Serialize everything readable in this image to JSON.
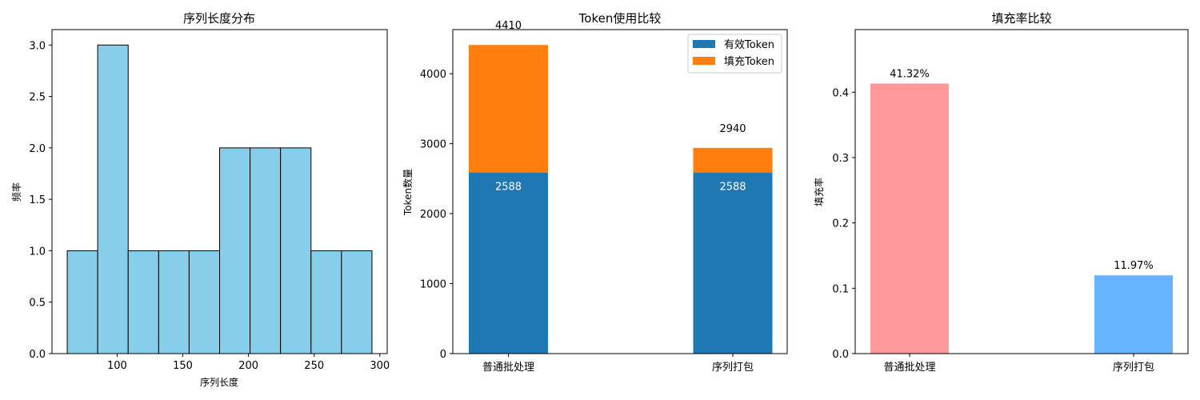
{
  "chart_data": [
    {
      "type": "bar",
      "title": "序列长度分布",
      "xlabel": "序列长度",
      "ylabel": "频率",
      "bin_edges": [
        62,
        85.2,
        108.4,
        131.6,
        154.8,
        178,
        201.2,
        224.4,
        247.6,
        270.8,
        294
      ],
      "values": [
        1,
        3,
        1,
        1,
        1,
        2,
        2,
        2,
        1,
        1
      ],
      "xticks": [
        100,
        150,
        200,
        250,
        300
      ],
      "yticks": [
        "0.0",
        "0.5",
        "1.0",
        "1.5",
        "2.0",
        "2.5",
        "3.0"
      ],
      "xlim": [
        50.4,
        305.6
      ],
      "ylim": [
        0,
        3.15
      ],
      "colors": {
        "bar": "#87ceeb",
        "edge": "#000000"
      }
    },
    {
      "type": "bar",
      "title": "Token使用比较",
      "xlabel": "",
      "ylabel": "Token数量",
      "categories": [
        "普通批处理",
        "序列打包"
      ],
      "series": [
        {
          "name": "有效Token",
          "values": [
            2588,
            2588
          ],
          "color": "#1f77b4"
        },
        {
          "name": "填充Token",
          "values": [
            1822,
            352
          ],
          "color": "#ff7f0e"
        }
      ],
      "totals": [
        "4410",
        "2940"
      ],
      "inner_labels": [
        "2588",
        "2588"
      ],
      "yticks": [
        "0",
        "1000",
        "2000",
        "3000",
        "4000"
      ],
      "ylim": [
        0,
        4630
      ],
      "legend_position": "upper right"
    },
    {
      "type": "bar",
      "title": "填充率比较",
      "xlabel": "",
      "ylabel": "填充率",
      "categories": [
        "普通批处理",
        "序列打包"
      ],
      "values": [
        0.4132,
        0.1197
      ],
      "data_labels": [
        "41.32%",
        "11.97%"
      ],
      "colors": [
        "#ff9999",
        "#66b3ff"
      ],
      "yticks": [
        "0.0",
        "0.1",
        "0.2",
        "0.3",
        "0.4"
      ],
      "ylim": [
        0,
        0.4958
      ]
    }
  ]
}
